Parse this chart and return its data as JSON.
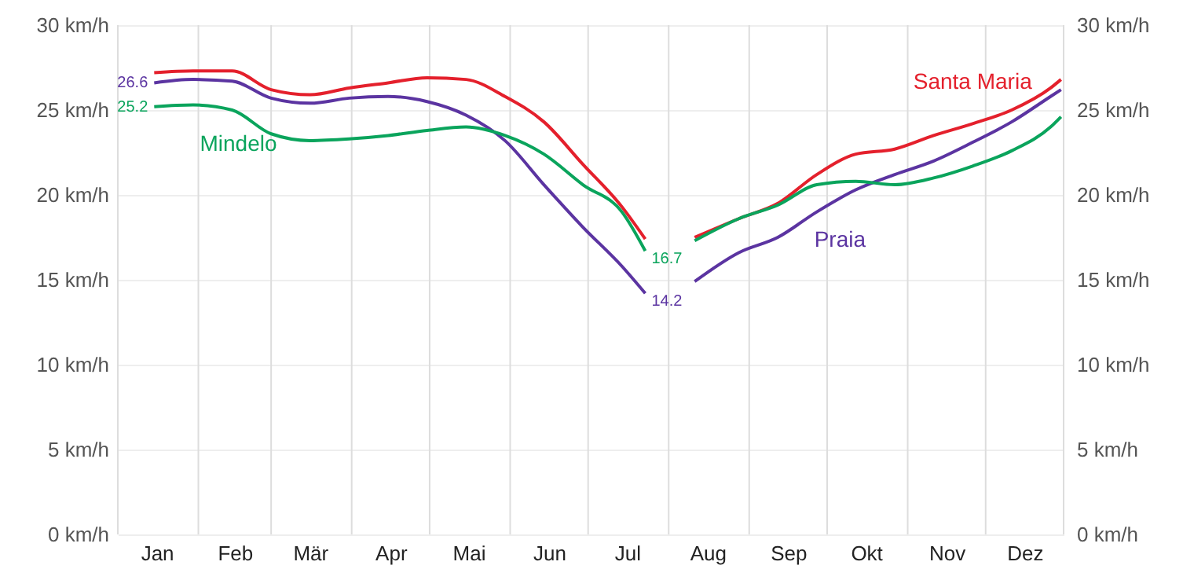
{
  "chart_data": {
    "type": "line",
    "x": [
      "--01-15",
      "--01-30",
      "--02-14",
      "--03-01",
      "--03-16",
      "--03-31",
      "--04-15",
      "--04-30",
      "--05-15",
      "--05-30",
      "--06-14",
      "--06-29",
      "--07-14",
      "--07-23",
      "--08-01",
      "--08-11",
      "--08-28",
      "--09-12",
      "--09-27",
      "--10-12",
      "--10-27",
      "--11-11",
      "--11-26",
      "--12-11",
      "--12-26",
      "--12-30"
    ],
    "xlim": [
      "--01-01",
      "--12-31"
    ],
    "xticks": [
      {
        "value": "--01-01",
        "label": null
      },
      {
        "value": "--01-16",
        "label": "Jan"
      },
      {
        "value": "--02-01",
        "label": null
      },
      {
        "value": "--02-15",
        "label": "Feb"
      },
      {
        "value": "--03-01",
        "label": null
      },
      {
        "value": "--03-16",
        "label": "Mär"
      },
      {
        "value": "--04-01",
        "label": null
      },
      {
        "value": "--04-16",
        "label": "Apr"
      },
      {
        "value": "--05-01",
        "label": null
      },
      {
        "value": "--05-16",
        "label": "Mai"
      },
      {
        "value": "--06-01",
        "label": null
      },
      {
        "value": "--06-16",
        "label": "Jun"
      },
      {
        "value": "--07-01",
        "label": null
      },
      {
        "value": "--07-16",
        "label": "Jul"
      },
      {
        "value": "--08-01",
        "label": null
      },
      {
        "value": "--08-16",
        "label": "Aug"
      },
      {
        "value": "--09-01",
        "label": null
      },
      {
        "value": "--09-16",
        "label": "Sep"
      },
      {
        "value": "--10-01",
        "label": null
      },
      {
        "value": "--10-16",
        "label": "Okt"
      },
      {
        "value": "--11-01",
        "label": null
      },
      {
        "value": "--11-16",
        "label": "Nov"
      },
      {
        "value": "--12-01",
        "label": null
      },
      {
        "value": "--12-16",
        "label": "Dez"
      },
      {
        "value": "--12-31",
        "label": null
      }
    ],
    "legend": false,
    "ylim": [
      0,
      30
    ],
    "yticks": [
      {
        "value": 0,
        "label": "0 km/h"
      },
      {
        "value": 5,
        "label": "5 km/h"
      },
      {
        "value": 10,
        "label": "10 km/h"
      },
      {
        "value": 15,
        "label": "15 km/h"
      },
      {
        "value": 20,
        "label": "20 km/h"
      },
      {
        "value": 25,
        "label": "25 km/h"
      },
      {
        "value": 30,
        "label": "30 km/h"
      }
    ],
    "y2lim": [
      0,
      30
    ],
    "y2ticks": [
      {
        "value": 0,
        "label": "0 km/h"
      },
      {
        "value": 5,
        "label": "5 km/h"
      },
      {
        "value": 10,
        "label": "10 km/h"
      },
      {
        "value": 15,
        "label": "15 km/h"
      },
      {
        "value": 20,
        "label": "20 km/h"
      },
      {
        "value": 25,
        "label": "25 km/h"
      },
      {
        "value": 30,
        "label": "30 km/h"
      }
    ],
    "grid": true,
    "series": [
      {
        "name": "Santa Maria",
        "color": "#e4202c",
        "values": [
          27.2,
          27.3,
          27.3,
          26.2,
          25.9,
          26.3,
          26.6,
          26.9,
          26.8,
          25.8,
          24.3,
          21.8,
          19.3,
          17.4,
          null,
          17.5,
          18.6,
          19.5,
          21.2,
          22.4,
          22.7,
          23.5,
          24.2,
          25.0,
          26.3,
          26.8
        ],
        "value_labels": [
          null,
          null,
          null,
          null,
          null,
          null,
          null,
          null,
          null,
          null,
          null,
          null,
          null,
          null,
          null,
          null,
          null,
          null,
          null,
          null,
          null,
          null,
          null,
          null,
          null,
          null
        ]
      },
      {
        "name": "Praia",
        "color": "#5b34a1",
        "values": [
          26.6,
          26.8,
          26.7,
          25.7,
          25.4,
          25.7,
          25.8,
          25.5,
          24.7,
          23.2,
          20.6,
          18.1,
          15.8,
          14.2,
          null,
          14.9,
          16.6,
          17.5,
          19.0,
          20.3,
          21.2,
          22.0,
          23.1,
          24.3,
          25.8,
          26.2
        ],
        "value_labels": [
          "26.6",
          null,
          null,
          null,
          null,
          null,
          null,
          null,
          null,
          null,
          null,
          null,
          null,
          "14.2",
          null,
          null,
          null,
          null,
          null,
          null,
          null,
          null,
          null,
          null,
          null,
          null
        ]
      },
      {
        "name": "Mindelo",
        "color": "#0aa45c",
        "values": [
          25.2,
          25.3,
          25.0,
          23.6,
          23.2,
          23.3,
          23.5,
          23.8,
          24.0,
          23.5,
          22.4,
          20.6,
          19.0,
          16.7,
          null,
          17.3,
          18.6,
          19.4,
          20.6,
          20.8,
          20.6,
          21.0,
          21.7,
          22.6,
          24.0,
          24.6
        ],
        "value_labels": [
          "25.2",
          null,
          null,
          null,
          null,
          null,
          null,
          null,
          null,
          null,
          null,
          null,
          null,
          "16.7",
          null,
          null,
          null,
          null,
          null,
          null,
          null,
          null,
          null,
          null,
          null,
          null
        ]
      }
    ]
  }
}
